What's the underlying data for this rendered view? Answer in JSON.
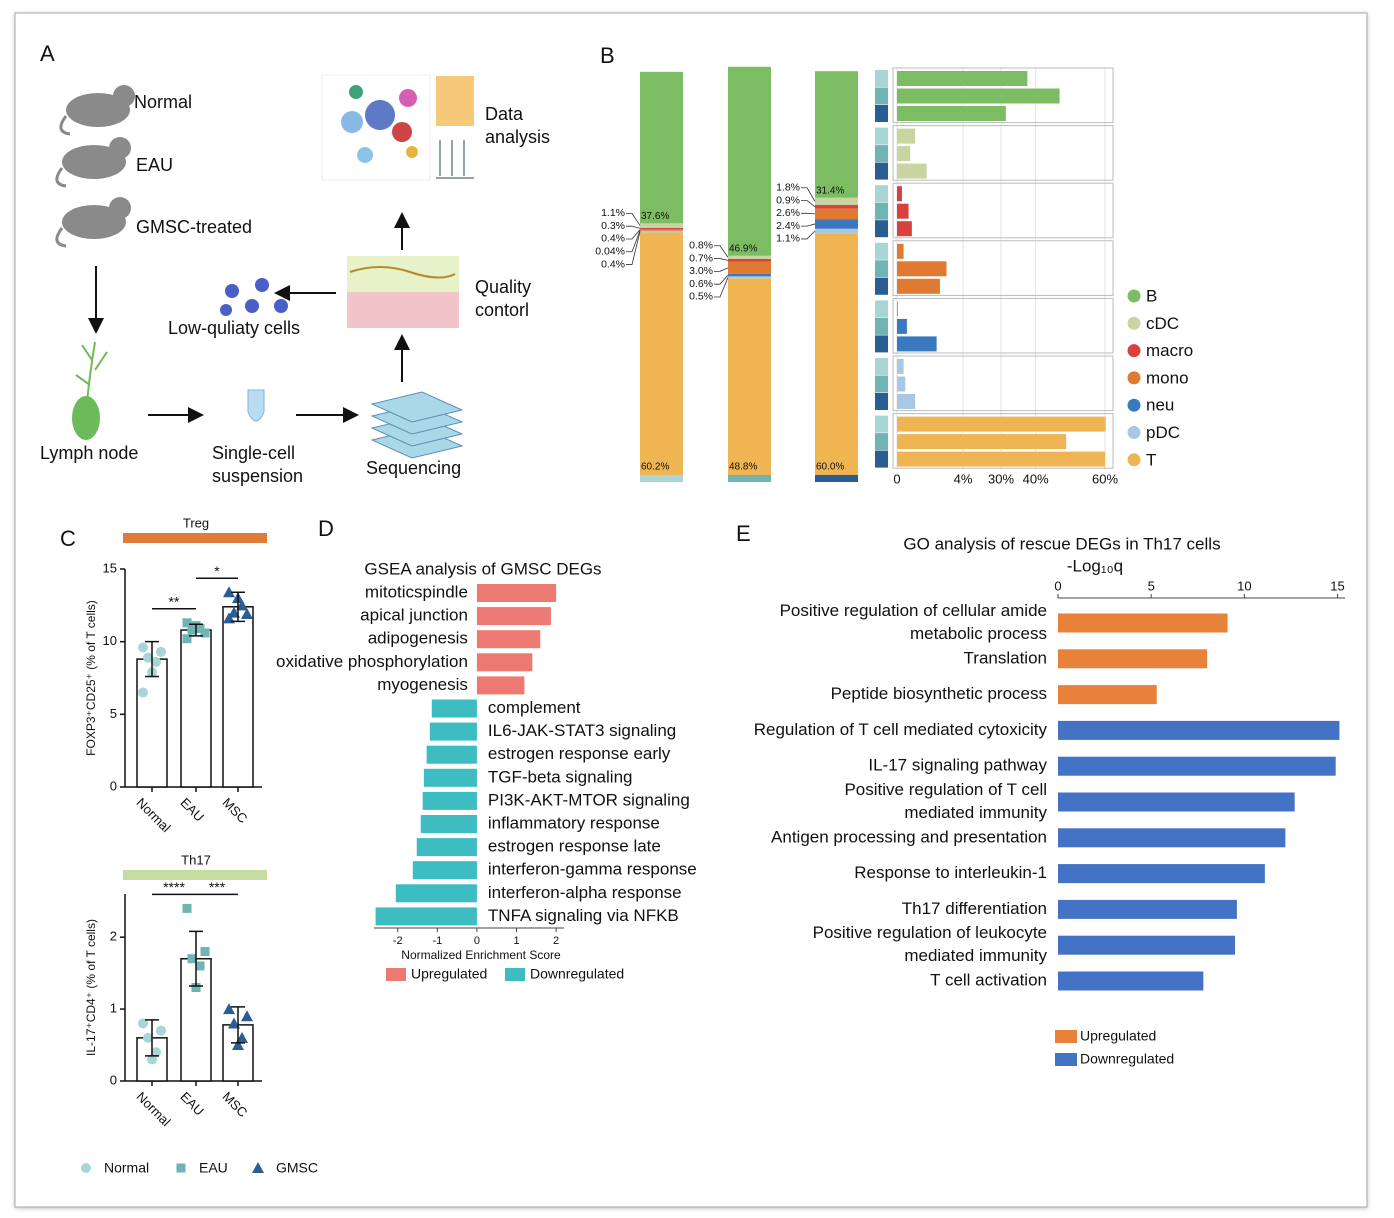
{
  "panel_labels": [
    "A",
    "B",
    "C",
    "D",
    "E"
  ],
  "diagram": {
    "groups": [
      "Normal",
      "EAU",
      "GMSC-treated"
    ],
    "lymph_node": "Lymph node",
    "suspension": [
      "Single-cell",
      "suspension"
    ],
    "sequencing": "Sequencing",
    "quality_control": [
      "Quality",
      "contorl"
    ],
    "low_quality": "Low-quliaty cells",
    "data_analysis": [
      "Data",
      "analysis"
    ]
  },
  "c_legend": [
    {
      "name": "Normal",
      "color": "#a8d5d6",
      "shape": "circle"
    },
    {
      "name": "EAU",
      "color": "#6fb3b2",
      "shape": "square"
    },
    {
      "name": "GMSC",
      "color": "#2a5d93",
      "shape": "triangle"
    }
  ],
  "chart_data": [
    {
      "type": "stacked_bar",
      "categories": [
        null,
        null,
        null
      ],
      "group_colors": [
        "#a8d5d6",
        "#6fb3b2",
        "#2a5d93"
      ],
      "ylim": [
        0,
        100
      ],
      "series": [
        {
          "name": "B",
          "color": "#7cbc63",
          "values": [
            37.6,
            46.9,
            31.4
          ],
          "value_labels": [
            "37.6%",
            "46.9%",
            "31.4%"
          ],
          "xlim": [
            0,
            60
          ]
        },
        {
          "name": "cDC",
          "color": "#c8d5a0",
          "values": [
            1.1,
            0.8,
            1.8
          ],
          "value_labels": [
            "1.1%",
            "0.8%",
            "1.8%"
          ],
          "xlim": [
            0,
            12.6
          ]
        },
        {
          "name": "macro",
          "color": "#d94040",
          "values": [
            0.3,
            0.7,
            0.9
          ],
          "value_labels": [
            "0.3%",
            "0.7%",
            "0.9%"
          ],
          "xlim": [
            0,
            12.6
          ]
        },
        {
          "name": "mono",
          "color": "#e07a30",
          "values": [
            0.4,
            3.0,
            2.6
          ],
          "value_labels": [
            "0.4%",
            "3.0%",
            "2.6%"
          ],
          "xlim": [
            0,
            12.6
          ]
        },
        {
          "name": "neu",
          "color": "#3a78c0",
          "values": [
            0.04,
            0.6,
            2.4
          ],
          "value_labels": [
            "0.04%",
            "0.6%",
            "2.4%"
          ],
          "xlim": [
            0,
            12.6
          ]
        },
        {
          "name": "pDC",
          "color": "#a9c8e4",
          "values": [
            0.4,
            0.5,
            1.1
          ],
          "value_labels": [
            "0.4%",
            "0.5%",
            "1.1%"
          ],
          "xlim": [
            0,
            12.6
          ]
        },
        {
          "name": "T",
          "color": "#f0b553",
          "values": [
            60.2,
            48.8,
            60.0
          ],
          "value_labels": [
            "60.2%",
            "48.8%",
            "60.0%"
          ],
          "xlim": [
            0,
            60
          ]
        }
      ],
      "xaxes": [
        {
          "xlim": [
            0,
            12.6
          ],
          "ticks": [
            0,
            {
              "value": 4,
              "label": "4%"
            }
          ]
        },
        {
          "xlim": [
            0,
            60
          ],
          "ticks": [
            {
              "value": 30,
              "label": "30%"
            },
            {
              "value": 40,
              "label": "40%"
            },
            {
              "value": 60,
              "label": "60%"
            }
          ]
        }
      ]
    },
    {
      "type": "bar_dot",
      "title": "Treg",
      "title_color": "#e07b39",
      "ylabel": "FOXP3⁺CD25⁺ (% of T cells)",
      "categories": [
        "Normal",
        "EAU",
        "MSC"
      ],
      "values": [
        8.8,
        10.8,
        12.4
      ],
      "errors": [
        1.2,
        0.4,
        1.0
      ],
      "points": [
        [
          9.6,
          9.3,
          8.9,
          8.6,
          7.9,
          6.5
        ],
        [
          10.2,
          10.6,
          10.8,
          10.9,
          11.1,
          11.3
        ],
        [
          11.6,
          11.9,
          12.0,
          12.5,
          13.0,
          13.4
        ]
      ],
      "ylim": [
        0,
        15
      ],
      "yticks": [
        0,
        5,
        10,
        15
      ],
      "significance": [
        "**",
        "*"
      ]
    },
    {
      "type": "bar_dot",
      "title": "Th17",
      "title_color": "#c6dca0",
      "ylabel": "IL-17⁺CD4⁺ (% of T cells)",
      "categories": [
        "Normal",
        "EAU",
        "MSC"
      ],
      "values": [
        0.6,
        1.7,
        0.78
      ],
      "errors": [
        0.25,
        0.38,
        0.25
      ],
      "points": [
        [
          0.8,
          0.7,
          0.6,
          0.4,
          0.3
        ],
        [
          2.4,
          1.8,
          1.7,
          1.6,
          1.3
        ],
        [
          1.0,
          0.9,
          0.8,
          0.6,
          0.5
        ]
      ],
      "ylim": [
        0,
        2.6
      ],
      "yticks": [
        0,
        1,
        2
      ],
      "significance": [
        "****",
        "***"
      ]
    },
    {
      "type": "hbar",
      "title": "GSEA analysis of GMSC DEGs",
      "xlabel": "Normalized Enrichment Score",
      "categories": [
        "mitoticspindle",
        "apical junction",
        "adipogenesis",
        "oxidative phosphorylation",
        "myogenesis",
        "complement",
        "IL6-JAK-STAT3 signaling",
        "estrogen response early",
        "TGF-beta signaling",
        "PI3K-AKT-MTOR signaling",
        "inflammatory response",
        "estrogen response late",
        "interferon-gamma response",
        "interferon-alpha response",
        "TNFA signaling via NFKB"
      ],
      "series": [
        {
          "name": "Upregulated",
          "color": "#ec7a72",
          "values": [
            2.0,
            1.87,
            1.6,
            1.4,
            1.2,
            null,
            null,
            null,
            null,
            null,
            null,
            null,
            null,
            null,
            null
          ]
        },
        {
          "name": "Downregulated",
          "color": "#3dbcc2",
          "values": [
            null,
            null,
            null,
            null,
            null,
            -1.14,
            -1.19,
            -1.27,
            -1.34,
            -1.37,
            -1.42,
            -1.52,
            -1.62,
            -2.05,
            -2.56
          ]
        }
      ],
      "xlim": [
        -2.6,
        2.2
      ],
      "xticks": [
        -2,
        -1,
        0,
        1,
        2
      ]
    },
    {
      "type": "hbar",
      "title": "GO analysis of rescue DEGs in Th17 cells",
      "xlabel": "-Log₁₀q",
      "xaxis": "top",
      "categories": [
        [
          "Positive regulation of cellular amide",
          "metabolic process"
        ],
        [
          "Translation"
        ],
        [
          "Peptide biosynthetic process"
        ],
        [
          "Regulation of T cell mediated cytoxicity"
        ],
        [
          "IL-17 signaling pathway"
        ],
        [
          "Positive regulation of T cell",
          "mediated immunity"
        ],
        [
          "Antigen processing and presentation"
        ],
        [
          "Response to interleukin-1"
        ],
        [
          "Th17 differentiation"
        ],
        [
          "Positive regulation of leukocyte",
          "mediated immunity"
        ],
        [
          "T cell activation"
        ]
      ],
      "series": [
        {
          "name": "Upregulated",
          "color": "#e8823a",
          "values": [
            9.1,
            8.0,
            5.3,
            null,
            null,
            null,
            null,
            null,
            null,
            null,
            null
          ]
        },
        {
          "name": "Downregulated",
          "color": "#4472c4",
          "values": [
            null,
            null,
            null,
            15.1,
            14.9,
            12.7,
            12.2,
            11.1,
            9.6,
            9.5,
            7.8
          ]
        }
      ],
      "xlim": [
        0,
        15.4
      ],
      "xticks": [
        0,
        5,
        10,
        15
      ]
    }
  ]
}
